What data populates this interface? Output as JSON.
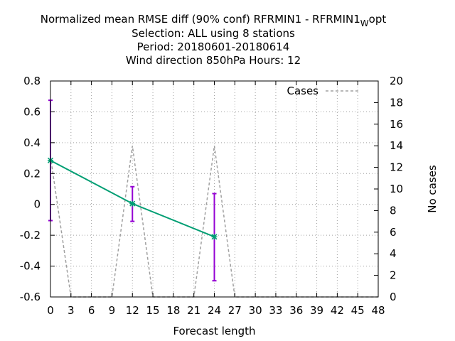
{
  "chart_data": {
    "type": "line",
    "title_lines": [
      "Normalized mean RMSE diff (90% conf) RFRMIN1 - RFRMIN1",
      "Selection: ALL using     8 stations",
      "Period: 20180601-20180614",
      "Wind direction 850hPa   Hours:  12"
    ],
    "title_subscript": "W",
    "title_suffix": "opt",
    "xlabel": "Forecast length",
    "ylabel": "",
    "y2label": "No cases",
    "xlim": [
      0,
      48
    ],
    "ylim": [
      -0.6,
      0.8
    ],
    "y2lim": [
      0,
      20
    ],
    "xticks": [
      "0",
      "3",
      "6",
      "9",
      "12",
      "15",
      "18",
      "21",
      "24",
      "27",
      "30",
      "33",
      "36",
      "39",
      "42",
      "45",
      "48"
    ],
    "yticks": [
      "-0.6",
      "-0.4",
      "-0.2",
      "0",
      "0.2",
      "0.4",
      "0.6",
      "0.8"
    ],
    "y2ticks": [
      "0",
      "2",
      "4",
      "6",
      "8",
      "10",
      "12",
      "14",
      "16",
      "18",
      "20"
    ],
    "grid": true,
    "legend_position": "top-right",
    "colors": {
      "diff_line": "#009e73",
      "error_bar": "#9400d3",
      "cases_line": "#a0a0a0"
    },
    "series": [
      {
        "name": "",
        "axis": "left",
        "style": "solid",
        "x": [
          0,
          12,
          24
        ],
        "y": [
          0.285,
          0.005,
          -0.21
        ],
        "err_low": [
          -0.105,
          -0.11,
          -0.495
        ],
        "err_high": [
          0.675,
          0.115,
          0.07
        ]
      },
      {
        "name": "Cases",
        "axis": "right",
        "style": "dashed",
        "x": [
          0,
          3,
          9,
          12,
          15,
          21,
          24,
          27,
          48
        ],
        "y": [
          13,
          0,
          0,
          14,
          0,
          0,
          14,
          0,
          0
        ]
      }
    ]
  }
}
